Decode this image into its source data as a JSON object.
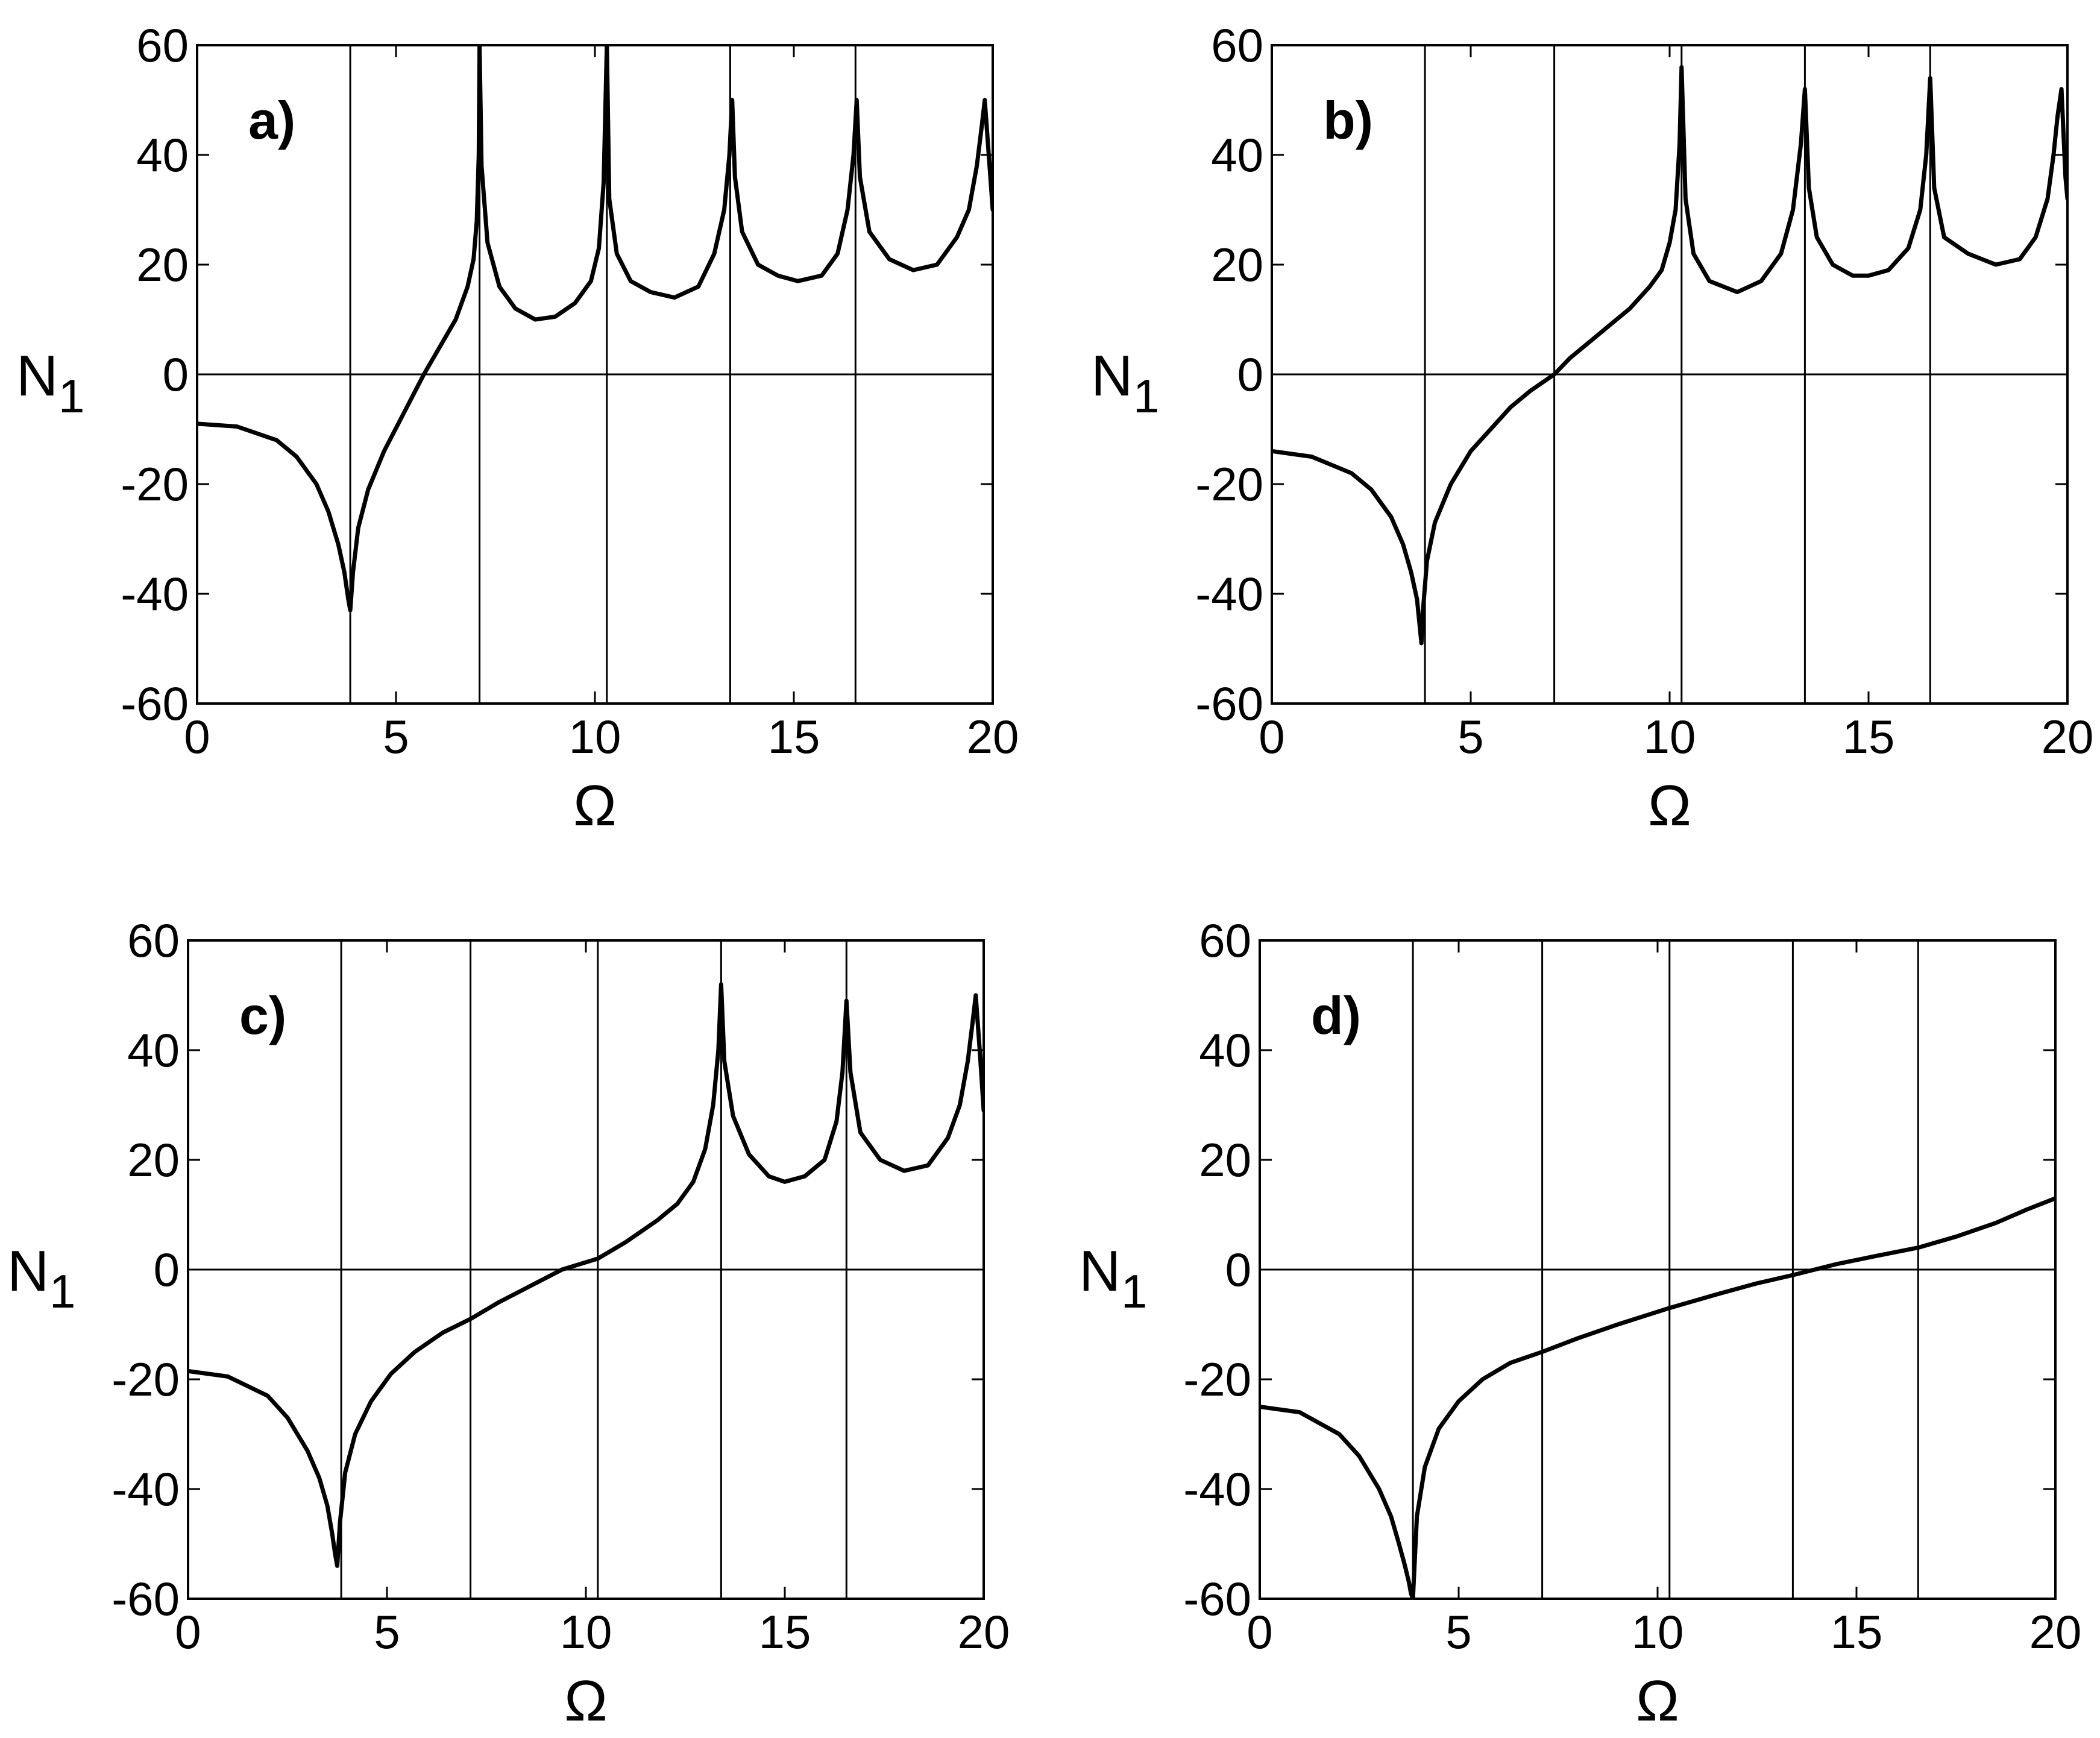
{
  "chart_data": [
    {
      "type": "line",
      "panel_label": "a)",
      "xlabel": "Ω",
      "ylabel_main": "N",
      "ylabel_sub": "1",
      "xlim": [
        0,
        20
      ],
      "ylim": [
        -60,
        60
      ],
      "xticks": [
        0,
        5,
        10,
        15,
        20
      ],
      "yticks": [
        -60,
        -40,
        -20,
        0,
        20,
        40,
        60
      ],
      "xtick_labels": [
        "0",
        "5",
        "10",
        "15",
        "20"
      ],
      "ytick_labels": [
        "-60",
        "-40",
        "-20",
        "0",
        "20",
        "40",
        "60"
      ],
      "vlines": [
        3.85,
        7.1,
        10.3,
        13.4,
        16.55
      ],
      "hline": 0,
      "series": [
        {
          "x": [
            0,
            1,
            2,
            2.5,
            3,
            3.3,
            3.55,
            3.7,
            3.8,
            3.85,
            3.92,
            4.05,
            4.3,
            4.7,
            5.2,
            5.7,
            6.1,
            6.5,
            6.8,
            6.95,
            7.03,
            7.08,
            7.1,
            7.15,
            7.3,
            7.6,
            8.0,
            8.5,
            9.0,
            9.5,
            9.9,
            10.1,
            10.22,
            10.3,
            10.36,
            10.55,
            10.9,
            11.4,
            12.0,
            12.6,
            13.0,
            13.25,
            13.38,
            13.45,
            13.52,
            13.7,
            14.1,
            14.6,
            15.1,
            15.7,
            16.1,
            16.35,
            16.5,
            16.58,
            16.66,
            16.9,
            17.4,
            18.0,
            18.6,
            19.1,
            19.4,
            19.6,
            19.72,
            19.8,
            19.9,
            20.0
          ],
          "y": [
            -9,
            -9.5,
            -12,
            -15,
            -20,
            -25,
            -31,
            -36,
            -41,
            -43,
            -36,
            -28,
            -21,
            -14,
            -7,
            0,
            5,
            10,
            16,
            21,
            28,
            40,
            60,
            38,
            24,
            16,
            12,
            10,
            10.5,
            13,
            17,
            23,
            35,
            60,
            32,
            22,
            17,
            15,
            14,
            16,
            22,
            30,
            40,
            50,
            36,
            26,
            20,
            18,
            17,
            18,
            22,
            30,
            40,
            50,
            36,
            26,
            21,
            19,
            20,
            25,
            30,
            38,
            45,
            50,
            40,
            30
          ]
        }
      ]
    },
    {
      "type": "line",
      "panel_label": "b)",
      "xlabel": "Ω",
      "ylabel_main": "N",
      "ylabel_sub": "1",
      "xlim": [
        0,
        20
      ],
      "ylim": [
        -60,
        60
      ],
      "xticks": [
        0,
        5,
        10,
        15,
        20
      ],
      "yticks": [
        -60,
        -40,
        -20,
        0,
        20,
        40,
        60
      ],
      "xtick_labels": [
        "0",
        "5",
        "10",
        "15",
        "20"
      ],
      "ytick_labels": [
        "-60",
        "-40",
        "-20",
        "0",
        "20",
        "40",
        "60"
      ],
      "vlines": [
        3.85,
        7.1,
        10.3,
        13.4,
        16.55
      ],
      "hline": 0,
      "series": [
        {
          "x": [
            0,
            1,
            2,
            2.5,
            3,
            3.3,
            3.5,
            3.65,
            3.72,
            3.76,
            3.8,
            3.9,
            4.1,
            4.5,
            5.0,
            5.5,
            6.0,
            6.5,
            7.1,
            7.5,
            8.0,
            8.5,
            9.0,
            9.5,
            9.8,
            10.0,
            10.15,
            10.25,
            10.3,
            10.4,
            10.6,
            11.0,
            11.7,
            12.3,
            12.8,
            13.1,
            13.3,
            13.4,
            13.5,
            13.7,
            14.1,
            14.6,
            15.0,
            15.5,
            16.0,
            16.3,
            16.45,
            16.55,
            16.65,
            16.9,
            17.5,
            18.2,
            18.8,
            19.2,
            19.5,
            19.65,
            19.75,
            19.85,
            19.95,
            20.0
          ],
          "y": [
            -14,
            -15,
            -18,
            -21,
            -26,
            -31,
            -36,
            -41,
            -46,
            -49,
            -43,
            -34,
            -27,
            -20,
            -14,
            -10,
            -6,
            -3,
            0,
            3,
            6,
            9,
            12,
            16,
            19,
            24,
            30,
            42,
            56,
            32,
            22,
            17,
            15,
            17,
            22,
            30,
            42,
            52,
            34,
            25,
            20,
            18,
            18,
            19,
            23,
            30,
            40,
            54,
            34,
            25,
            22,
            20,
            21,
            25,
            32,
            40,
            47,
            52,
            36,
            32
          ]
        }
      ]
    },
    {
      "type": "line",
      "panel_label": "c)",
      "xlabel": "Ω",
      "ylabel_main": "N",
      "ylabel_sub": "1",
      "xlim": [
        0,
        20
      ],
      "ylim": [
        -60,
        60
      ],
      "xticks": [
        0,
        5,
        10,
        15,
        20
      ],
      "yticks": [
        -60,
        -40,
        -20,
        0,
        20,
        40,
        60
      ],
      "xtick_labels": [
        "0",
        "5",
        "10",
        "15",
        "20"
      ],
      "ytick_labels": [
        "-60",
        "-40",
        "-20",
        "0",
        "20",
        "40",
        "60"
      ],
      "vlines": [
        3.85,
        7.1,
        10.3,
        13.4,
        16.55
      ],
      "hline": 0,
      "series": [
        {
          "x": [
            0,
            1,
            2,
            2.5,
            3,
            3.3,
            3.5,
            3.62,
            3.7,
            3.75,
            3.82,
            3.95,
            4.2,
            4.6,
            5.1,
            5.7,
            6.4,
            7.1,
            7.8,
            8.6,
            9.4,
            10.3,
            11.0,
            11.8,
            12.3,
            12.7,
            13.0,
            13.2,
            13.33,
            13.4,
            13.48,
            13.7,
            14.1,
            14.6,
            15.0,
            15.5,
            16.0,
            16.3,
            16.45,
            16.55,
            16.65,
            16.9,
            17.4,
            18.0,
            18.6,
            19.1,
            19.4,
            19.6,
            19.72,
            19.8,
            19.9,
            20.0
          ],
          "y": [
            -18.5,
            -19.5,
            -23,
            -27,
            -33,
            -38,
            -43,
            -48,
            -52,
            -54,
            -46,
            -37,
            -30,
            -24,
            -19,
            -15,
            -11.5,
            -9,
            -6,
            -3,
            0,
            2,
            5,
            9,
            12,
            16,
            22,
            30,
            40,
            52,
            38,
            28,
            21,
            17,
            16,
            17,
            20,
            27,
            36,
            49,
            36,
            25,
            20,
            18,
            19,
            24,
            30,
            38,
            45,
            50,
            40,
            29
          ]
        }
      ]
    },
    {
      "type": "line",
      "panel_label": "d)",
      "xlabel": "Ω",
      "ylabel_main": "N",
      "ylabel_sub": "1",
      "xlim": [
        0,
        20
      ],
      "ylim": [
        -60,
        60
      ],
      "xticks": [
        0,
        5,
        10,
        15,
        20
      ],
      "yticks": [
        -60,
        -40,
        -20,
        0,
        20,
        40,
        60
      ],
      "xtick_labels": [
        "0",
        "5",
        "10",
        "15",
        "20"
      ],
      "ytick_labels": [
        "-60",
        "-40",
        "-20",
        "0",
        "20",
        "40",
        "60"
      ],
      "vlines": [
        3.85,
        7.1,
        10.3,
        13.4,
        16.55
      ],
      "hline": 0,
      "series": [
        {
          "x": [
            0,
            1,
            2,
            2.5,
            3,
            3.3,
            3.5,
            3.65,
            3.75,
            3.8,
            3.85,
            3.95,
            4.15,
            4.5,
            5.0,
            5.6,
            6.3,
            7.1,
            8.0,
            9.0,
            10.3,
            11.5,
            12.5,
            13.4,
            14.5,
            15.5,
            16.55,
            17.5,
            18.5,
            19.3,
            20.0
          ],
          "y": [
            -25,
            -26,
            -30,
            -34,
            -40,
            -45,
            -50,
            -54,
            -57,
            -59,
            -60,
            -45,
            -36,
            -29,
            -24,
            -20,
            -17,
            -15,
            -12.5,
            -10,
            -7,
            -4.5,
            -2.5,
            -1,
            1,
            2.5,
            4,
            6,
            8.5,
            11,
            13
          ]
        }
      ]
    }
  ]
}
